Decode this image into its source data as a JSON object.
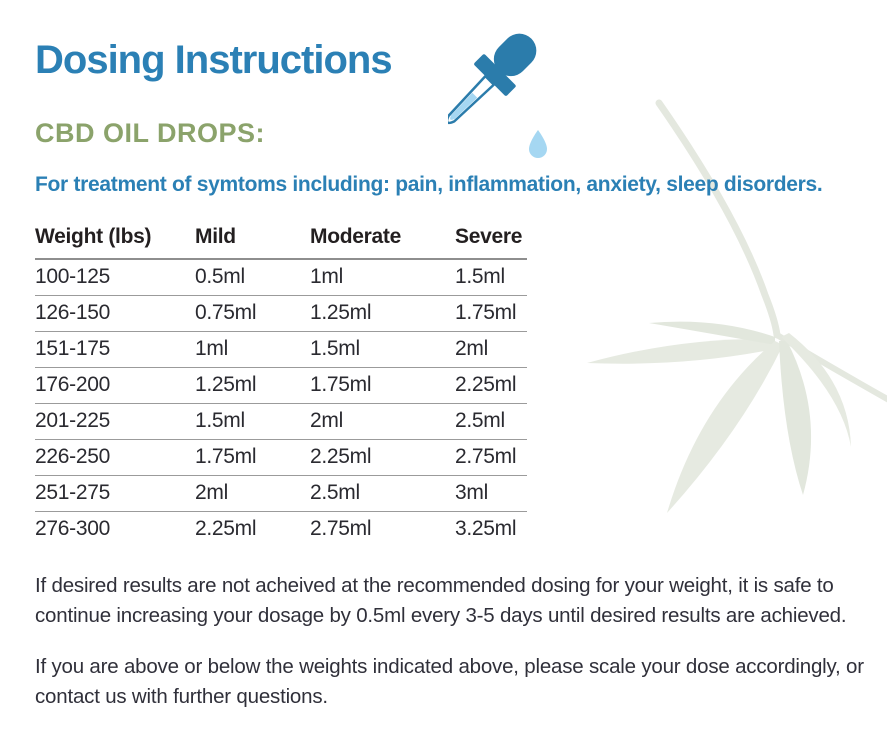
{
  "page": {
    "title": "Dosing Instructions",
    "section_label": "CBD OIL DROPS:",
    "subtitle": "For treatment of symtoms including: pain, inflammation, anxiety, sleep disorders.",
    "footer_paragraphs": [
      "If desired results are not acheived at the recommended dosing for your weight, it is safe to continue increasing your dosage by 0.5ml every 3-5 days until desired results are achieved.",
      "If you are above or below the weights indicated above, please scale your dose accordingly, or contact us with further questions."
    ]
  },
  "table": {
    "columns": [
      "Weight (lbs)",
      "Mild",
      "Moderate",
      "Severe"
    ],
    "rows": [
      [
        "100-125",
        "0.5ml",
        "1ml",
        "1.5ml"
      ],
      [
        "126-150",
        "0.75ml",
        "1.25ml",
        "1.75ml"
      ],
      [
        "151-175",
        "1ml",
        "1.5ml",
        "2ml"
      ],
      [
        "176-200",
        "1.25ml",
        "1.75ml",
        "2.25ml"
      ],
      [
        "201-225",
        "1.5ml",
        "2ml",
        "2.5ml"
      ],
      [
        "226-250",
        "1.75ml",
        "2.25ml",
        "2.75ml"
      ],
      [
        "251-275",
        "2ml",
        "2.5ml",
        "3ml"
      ],
      [
        "276-300",
        "2.25ml",
        "2.75ml",
        "3.25ml"
      ]
    ]
  },
  "icons": {
    "dropper": "dropper-icon",
    "leaf": "leaf-decoration-icon"
  },
  "colors": {
    "title_blue": "#2b80b5",
    "olive_green": "#8ba36b",
    "body_text": "#30303a",
    "table_text": "#231f20",
    "divider_gray": "#8e8e8e",
    "dropper_dark_blue": "#2b7cab",
    "dropper_light_blue": "#a5d7f2",
    "leaf_sage": "#e6eae1"
  }
}
